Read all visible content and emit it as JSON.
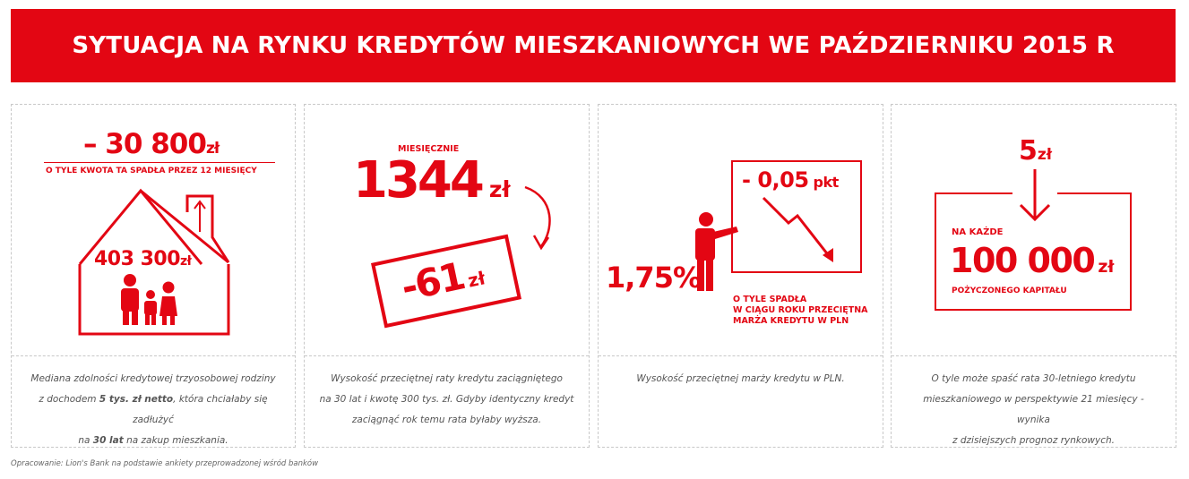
{
  "title": "SYTUACJA NA RYNKU KREDYTÓW MIESZKANIOWYCH WE PAŹDZIERNIKU 2015 R",
  "panel1": {
    "big_value": "– 30 800",
    "big_unit": "zł",
    "subtitle": "O TYLE KWOTA TA SPADŁA PRZEZ 12 MIESIĘCY",
    "house_value": "403 300",
    "house_unit": "zł",
    "caption_1": "Mediana zdolności kredytowej trzyosobowej rodziny",
    "caption_2a": "z dochodem ",
    "caption_2b": "5 tys. zł netto",
    "caption_2c": ", która chciałaby się zadłużyć",
    "caption_3a": "na ",
    "caption_3b": "30 lat",
    "caption_3c": " na zakup mieszkania."
  },
  "panel2": {
    "monthly_label": "MIESIĘCZNIE",
    "value": "1344",
    "unit": "zł",
    "stamp_value": "-61",
    "stamp_unit": "zł",
    "caption_1": "Wysokość przeciętnej raty kredytu zaciągniętego",
    "caption_2": "na 30 lat i kwotę 300 tys. zł. Gdyby identyczny kredyt",
    "caption_3": "zaciągnąć rok temu rata byłaby wyższa."
  },
  "panel3": {
    "value": "1,75%",
    "board_value": "- 0,05",
    "board_unit": "pkt",
    "label_1": "O TYLE SPADŁA",
    "label_2": "W CIĄGU ROKU PRZECIĘTNA",
    "label_3": "MARŻA KREDYTU W PLN",
    "caption_1": "Wysokość przeciętnej marży kredytu w PLN."
  },
  "panel4": {
    "top_value": "5",
    "top_unit": "zł",
    "per_label": "NA KAŻDE",
    "value": "100 000",
    "unit": "zł",
    "sub_label": "POŻYCZONEGO KAPITAŁU",
    "caption_1": "O tyle może spaść rata 30-letniego kredytu",
    "caption_2": "mieszkaniowego w perspektywie 21 miesięcy - wynika",
    "caption_3": "z dzisiejszych prognoz rynkowych."
  },
  "footer": "Opracowanie: Lion's Bank na podstawie ankiety przeprowadzonej wśród banków",
  "colors": {
    "accent": "#e30613",
    "caption_text": "#555555",
    "border": "#c8c8c8"
  }
}
